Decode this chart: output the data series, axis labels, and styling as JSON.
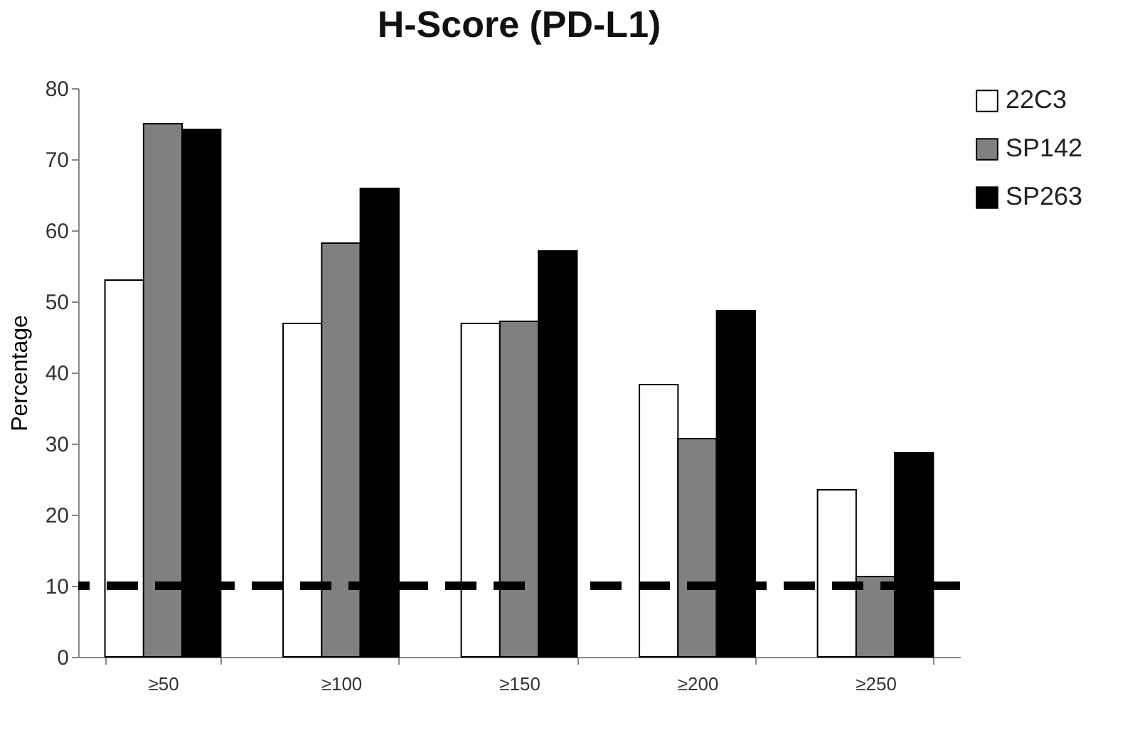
{
  "chart_data": {
    "type": "bar",
    "title": "H-Score (PD-L1)",
    "ylabel": "Percentage",
    "categories": [
      "≥50",
      "≥100",
      "≥150",
      "≥200",
      "≥250"
    ],
    "series": [
      {
        "name": "22C3",
        "color": "#ffffff",
        "values": [
          53,
          46.9,
          46.9,
          38.3,
          23.5
        ]
      },
      {
        "name": "SP142",
        "color": "#808080",
        "values": [
          75,
          58.2,
          47.2,
          30.7,
          11.3
        ]
      },
      {
        "name": "SP263",
        "color": "#000000",
        "values": [
          74.2,
          65.9,
          57.1,
          48.7,
          28.7
        ]
      }
    ],
    "ylim": [
      0,
      80
    ],
    "yticks": [
      0,
      10,
      20,
      30,
      40,
      50,
      60,
      70,
      80
    ],
    "grid": false,
    "legend": "right",
    "ref_lines": [
      {
        "axis": "y",
        "value": 10,
        "color": "#000000",
        "line_style": "dashed"
      }
    ]
  }
}
